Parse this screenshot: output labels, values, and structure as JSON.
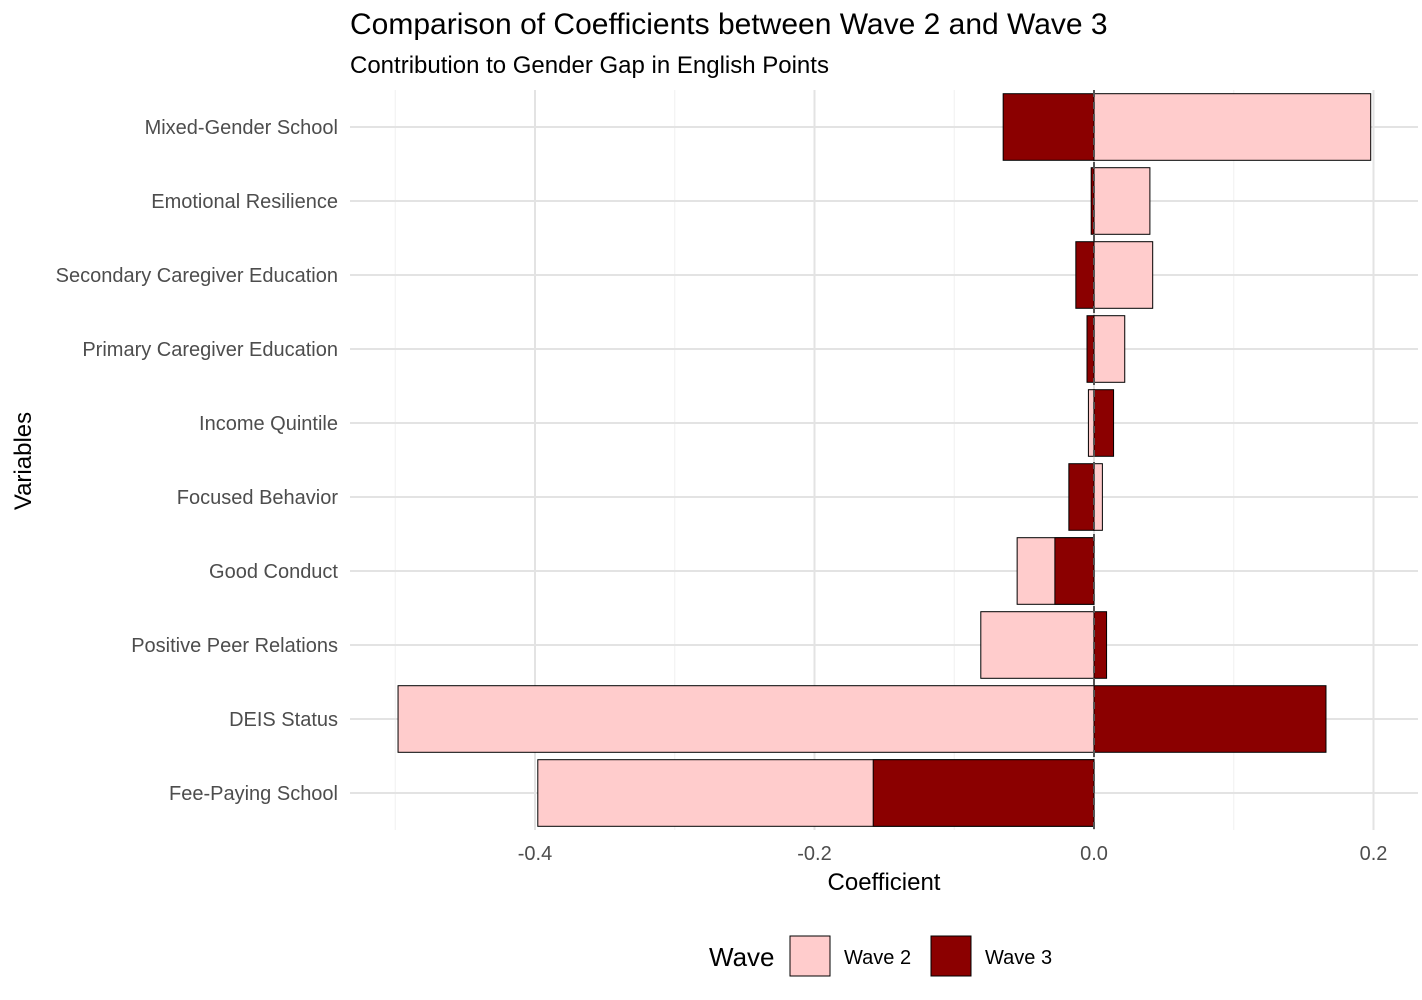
{
  "chart_data": {
    "type": "bar",
    "orientation": "horizontal",
    "title": "Comparison of Coefficients between Wave 2 and Wave 3",
    "subtitle": "Contribution to Gender Gap in English Points",
    "xlabel": "Coefficient",
    "ylabel": "Variables",
    "xlim": [
      -0.52,
      0.23
    ],
    "x_ticks": [
      -0.4,
      -0.2,
      0.0,
      0.2
    ],
    "x_tick_labels": [
      "-0.4",
      "-0.2",
      "0.0",
      "0.2"
    ],
    "x_minor_ticks": [
      -0.5,
      -0.3,
      -0.1,
      0.1
    ],
    "reference_line": 0,
    "grid": true,
    "categories": [
      "Mixed-Gender School",
      "Emotional Resilience",
      "Secondary Caregiver Education",
      "Primary Caregiver Education",
      "Income Quintile",
      "Focused Behavior",
      "Good Conduct",
      "Positive Peer Relations",
      "DEIS Status",
      "Fee-Paying School"
    ],
    "series": [
      {
        "name": "Wave 2",
        "color": "#FFCCCC",
        "values": [
          0.198,
          0.04,
          0.042,
          0.022,
          -0.004,
          0.006,
          -0.055,
          -0.081,
          -0.498,
          -0.398
        ]
      },
      {
        "name": "Wave 3",
        "color": "#8B0000",
        "values": [
          -0.065,
          -0.002,
          -0.013,
          -0.005,
          0.014,
          -0.018,
          -0.028,
          0.009,
          0.166,
          -0.158
        ]
      }
    ],
    "legend": {
      "title": "Wave",
      "position": "bottom",
      "entries": [
        "Wave 2",
        "Wave 3"
      ]
    }
  }
}
